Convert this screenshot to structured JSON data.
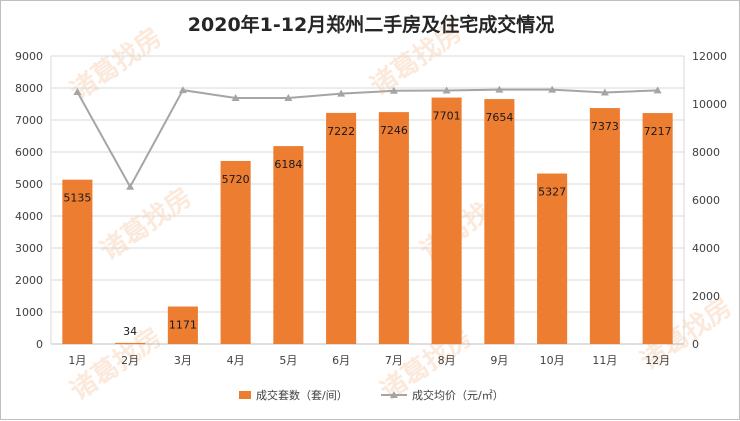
{
  "chart_data": {
    "type": "bar",
    "title": "2020年1-12月郑州二手房及住宅成交情况",
    "categories": [
      "1月",
      "2月",
      "3月",
      "4月",
      "5月",
      "6月",
      "7月",
      "8月",
      "9月",
      "10月",
      "11月",
      "12月"
    ],
    "series": [
      {
        "name": "成交套数（套/间）",
        "type": "bar",
        "axis": "left",
        "color": "#ed7d31",
        "values": [
          5135,
          34,
          1171,
          5720,
          6184,
          7222,
          7246,
          7701,
          7654,
          5327,
          7373,
          7217
        ]
      },
      {
        "name": "成交均价（元/㎡）",
        "type": "line",
        "axis": "right",
        "color": "#a5a5a5",
        "values": [
          10500,
          6550,
          10580,
          10250,
          10250,
          10430,
          10550,
          10560,
          10600,
          10600,
          10480,
          10570
        ]
      }
    ],
    "ylim": [
      0,
      9000
    ],
    "yticks": [
      "0",
      "1000",
      "2000",
      "3000",
      "4000",
      "5000",
      "6000",
      "7000",
      "8000",
      "9000"
    ],
    "y2lim": [
      0,
      12000
    ],
    "y2ticks": [
      "0",
      "2000",
      "4000",
      "6000",
      "8000",
      "10000",
      "12000"
    ],
    "grid": true,
    "legend_position": "bottom",
    "watermark": "诸葛找房"
  }
}
